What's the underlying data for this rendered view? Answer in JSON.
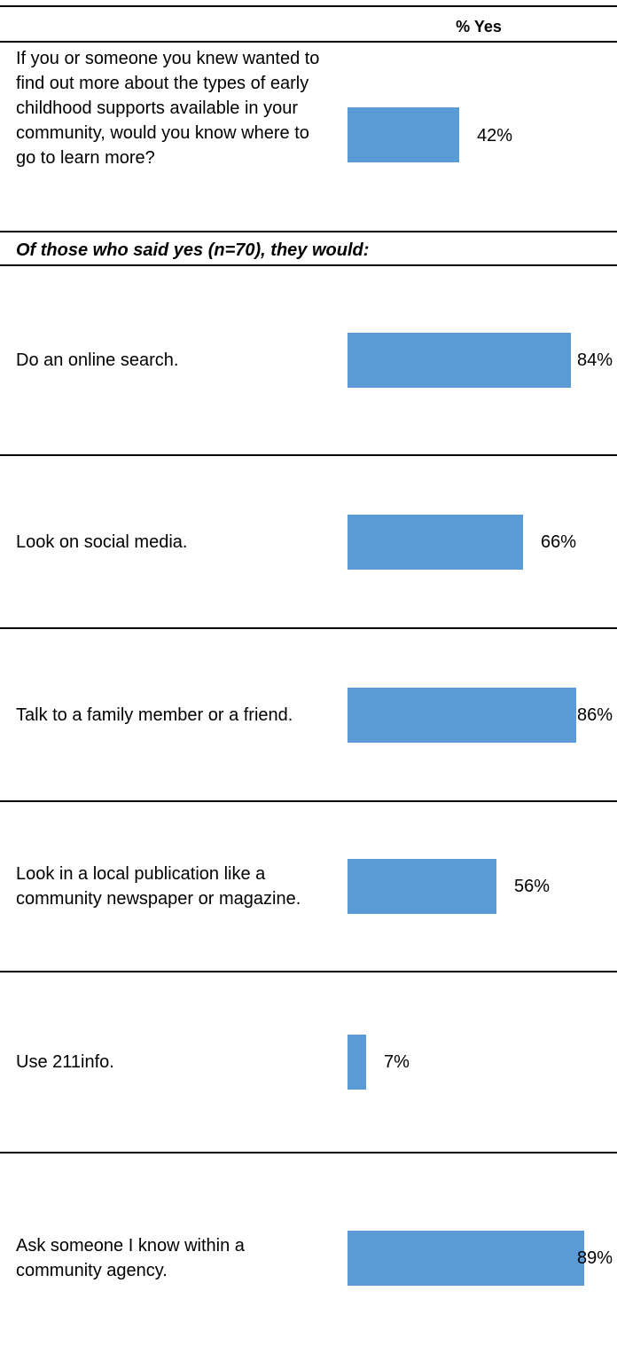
{
  "header": {
    "column_label": "% Yes"
  },
  "question": {
    "text": "If you or someone you knew wanted to find out more about the types of early childhood supports available in your community, would you know where to go to learn more?",
    "value": 42,
    "value_label": "42%"
  },
  "subhead": "Of those who said yes (n=70), they would:",
  "colors": {
    "bar": "#5b9bd5",
    "rule": "#000000"
  },
  "chart_data": {
    "type": "bar",
    "orientation": "horizontal",
    "title": "",
    "categories": [
      "Do an online search.",
      "Look on social media.",
      "Talk to a family member or a friend.",
      "Look in a local publication like a community newspaper or magazine.",
      "Use 211info.",
      "Ask someone I know within a community agency."
    ],
    "values": [
      84,
      66,
      86,
      56,
      7,
      89
    ],
    "value_labels": [
      "84%",
      "66%",
      "86%",
      "56%",
      "7%",
      "89%"
    ],
    "xlim": [
      0,
      100
    ],
    "grid": false,
    "legend": "none"
  }
}
